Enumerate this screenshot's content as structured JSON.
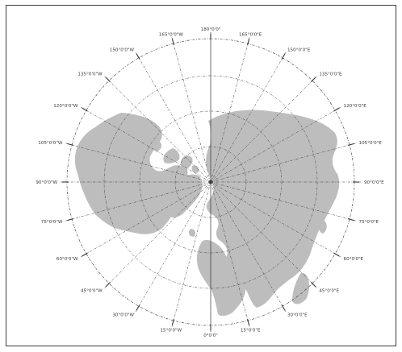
{
  "colors": {
    "land": "#bdbdbd",
    "background": "#ffffff",
    "lines": "#333333"
  },
  "map": {
    "projection": "north polar azimuthal",
    "meridian_labels": [
      {
        "lon": 180,
        "text": "180°0'0\""
      },
      {
        "lon": 165,
        "text": "165°0'0\"E"
      },
      {
        "lon": 150,
        "text": "150°0'0\"E"
      },
      {
        "lon": 135,
        "text": "135°0'0\"E"
      },
      {
        "lon": 120,
        "text": "120°0'0\"E"
      },
      {
        "lon": 105,
        "text": "105°0'0\"E"
      },
      {
        "lon": 90,
        "text": "90°0'0\"E"
      },
      {
        "lon": 75,
        "text": "75°0'0\"E"
      },
      {
        "lon": 60,
        "text": "60°0'0\"E"
      },
      {
        "lon": 45,
        "text": "45°0'0\"E"
      },
      {
        "lon": 30,
        "text": "30°0'0\"E"
      },
      {
        "lon": 15,
        "text": "15°0'0\"E"
      },
      {
        "lon": 0,
        "text": "0°0'0\""
      },
      {
        "lon": -15,
        "text": "15°0'0\"W"
      },
      {
        "lon": -30,
        "text": "30°0'0\"W"
      },
      {
        "lon": -45,
        "text": "45°0'0\"W"
      },
      {
        "lon": -60,
        "text": "60°0'0\"W"
      },
      {
        "lon": -75,
        "text": "75°0'0\"W"
      },
      {
        "lon": -90,
        "text": "90°0'0\"W"
      },
      {
        "lon": -105,
        "text": "105°0'0\"W"
      },
      {
        "lon": -120,
        "text": "120°0'0\"W"
      },
      {
        "lon": -135,
        "text": "135°0'0\"W"
      },
      {
        "lon": -150,
        "text": "150°0'0\"W"
      },
      {
        "lon": -165,
        "text": "165°0'0\"W"
      }
    ]
  }
}
